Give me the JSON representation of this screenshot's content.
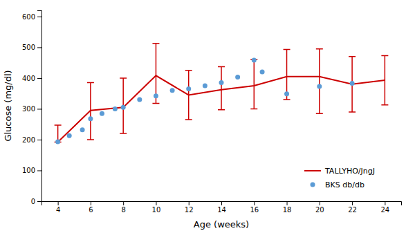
{
  "chart_data": {
    "type": "line",
    "xlabel": "Age (weeks)",
    "ylabel": "Glucose (mg/dl)",
    "series": [
      {
        "name": "TALLYHO/JngJ",
        "type": "line",
        "color": "#cc0000",
        "x": [
          4,
          6,
          8,
          10,
          12,
          14,
          16,
          18,
          20,
          22,
          24
        ],
        "values": [
          192,
          295,
          305,
          408,
          345,
          362,
          375,
          405,
          405,
          380,
          393
        ],
        "error_upper": [
          55,
          90,
          95,
          105,
          80,
          75,
          85,
          88,
          90,
          90,
          80
        ],
        "error_lower": [
          0,
          95,
          85,
          90,
          80,
          65,
          75,
          75,
          120,
          90,
          80
        ]
      },
      {
        "name": "BKS db/db",
        "type": "scatter",
        "marker": "circle",
        "line_style": "none",
        "color": "#5b9bd5",
        "x": [
          4,
          4.7,
          5.5,
          6,
          6.7,
          7.5,
          8,
          9,
          10,
          11,
          12,
          13,
          14,
          15,
          16,
          16.5,
          18,
          20,
          22
        ],
        "values": [
          193,
          213,
          232,
          268,
          285,
          300,
          305,
          330,
          342,
          360,
          365,
          375,
          385,
          403,
          458,
          420,
          349,
          373,
          383
        ]
      }
    ],
    "xlim": [
      3,
      25
    ],
    "xticks": [
      4,
      6,
      8,
      10,
      12,
      14,
      16,
      18,
      20,
      22,
      24
    ],
    "ylim": [
      0,
      620
    ],
    "yticks": [
      0,
      100,
      200,
      300,
      400,
      500,
      600
    ],
    "grid": false,
    "legend": "lower right"
  }
}
